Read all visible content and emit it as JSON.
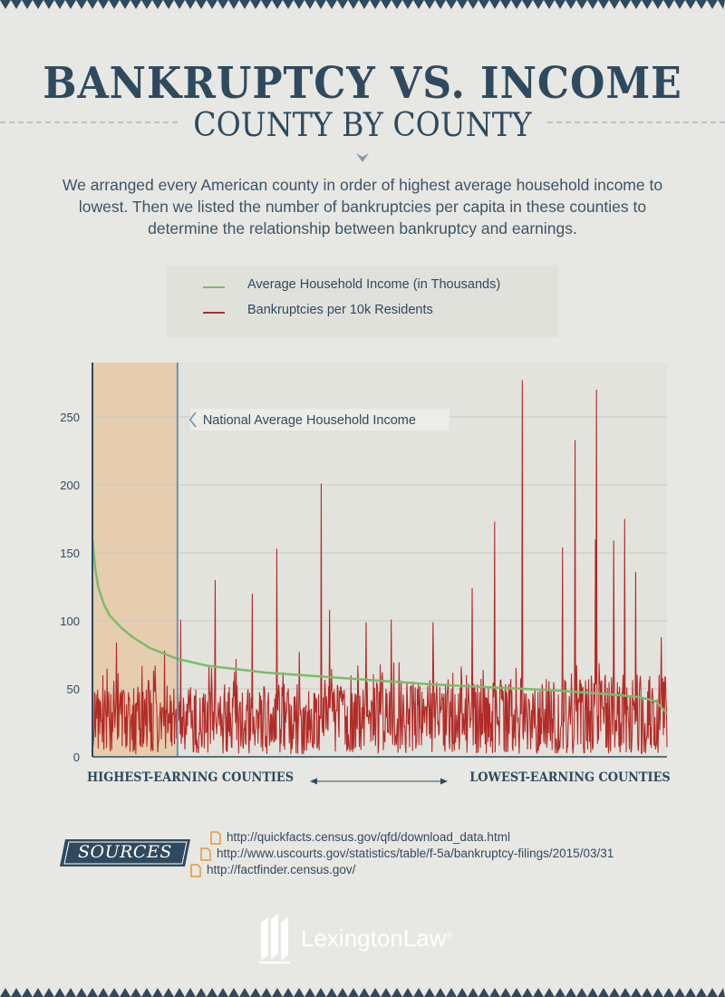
{
  "header": {
    "title": "BANKRUPTCY VS. INCOME",
    "subtitle": "COUNTY BY COUNTY",
    "intro": "We arranged every American county in order of highest average household income to lowest. Then we listed the number of bankruptcies per capita in these counties to determine the relationship between bankruptcy and earnings."
  },
  "legend": {
    "income": "Average Household Income (in Thousands)",
    "bankruptcy": "Bankruptcies per 10k Residents"
  },
  "colors": {
    "income": "#7dbb68",
    "bankruptcy": "#b32a26",
    "navy": "#2f4a5e",
    "highlight": "#e6cdb0",
    "avg_line": "#6a92ae"
  },
  "chart_data": {
    "type": "line",
    "ylim": [
      0,
      290
    ],
    "yticks": [
      0,
      50,
      100,
      150,
      200,
      250
    ],
    "x_axis": {
      "left_label": "HIGHEST-EARNING COUNTIES",
      "right_label": "LOWEST-EARNING COUNTIES"
    },
    "annotation": {
      "label": "National Average Household Income",
      "x_fraction": 0.148
    },
    "series": [
      {
        "name": "Average Household Income (in Thousands)",
        "x": [
          0,
          0.005,
          0.01,
          0.02,
          0.03,
          0.05,
          0.07,
          0.1,
          0.13,
          0.148,
          0.2,
          0.3,
          0.4,
          0.5,
          0.6,
          0.7,
          0.8,
          0.9,
          0.95,
          0.98,
          1.0
        ],
        "values": [
          160,
          138,
          125,
          112,
          104,
          95,
          88,
          80,
          75,
          72,
          67,
          62,
          59,
          56,
          53,
          51,
          49,
          46,
          44,
          41,
          32
        ]
      },
      {
        "name": "Bankruptcies per 10k Residents",
        "peaks": [
          {
            "x": 0.042,
            "y": 84
          },
          {
            "x": 0.125,
            "y": 78
          },
          {
            "x": 0.154,
            "y": 101
          },
          {
            "x": 0.214,
            "y": 130
          },
          {
            "x": 0.25,
            "y": 72
          },
          {
            "x": 0.278,
            "y": 120
          },
          {
            "x": 0.321,
            "y": 153
          },
          {
            "x": 0.36,
            "y": 77
          },
          {
            "x": 0.398,
            "y": 201
          },
          {
            "x": 0.413,
            "y": 108
          },
          {
            "x": 0.476,
            "y": 99
          },
          {
            "x": 0.52,
            "y": 101
          },
          {
            "x": 0.593,
            "y": 99
          },
          {
            "x": 0.661,
            "y": 124
          },
          {
            "x": 0.7,
            "y": 173
          },
          {
            "x": 0.748,
            "y": 277
          },
          {
            "x": 0.818,
            "y": 154
          },
          {
            "x": 0.84,
            "y": 233
          },
          {
            "x": 0.875,
            "y": 160
          },
          {
            "x": 0.877,
            "y": 270
          },
          {
            "x": 0.907,
            "y": 159
          },
          {
            "x": 0.926,
            "y": 175
          },
          {
            "x": 0.945,
            "y": 136
          },
          {
            "x": 0.99,
            "y": 88
          }
        ],
        "typical_range": [
          10,
          50
        ]
      }
    ]
  },
  "sources": {
    "label": "SOURCES",
    "links": [
      "http://quickfacts.census.gov/qfd/download_data.html",
      "http://www.uscourts.gov/statistics/table/f-5a/bankruptcy-filings/2015/03/31",
      "http://factfinder.census.gov/"
    ]
  },
  "brand": {
    "name": "LexingtonLaw",
    "reg": "®"
  }
}
